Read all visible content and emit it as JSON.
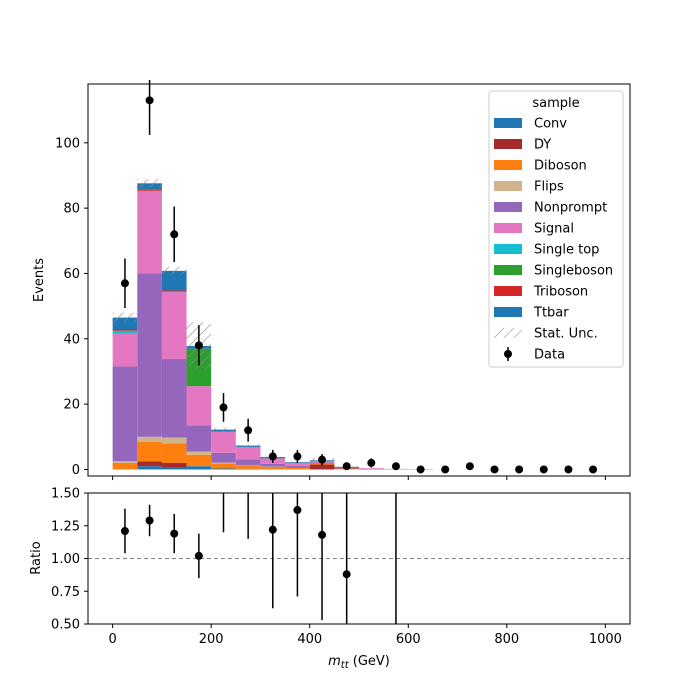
{
  "chart_data": [
    {
      "type": "bar",
      "stacked": true,
      "ylabel": "Events",
      "xlim": [
        -50,
        1050
      ],
      "ylim": [
        -2,
        118
      ],
      "yticks": [
        0,
        20,
        40,
        60,
        80,
        100
      ],
      "ytick_labels": [
        "0",
        "20",
        "40",
        "60",
        "80",
        "100"
      ],
      "bin_edges": [
        0,
        50,
        100,
        150,
        200,
        250,
        300,
        350,
        400,
        450,
        500,
        550,
        600,
        650,
        700,
        750,
        800,
        850,
        900,
        950,
        1000
      ],
      "legend_title": "sample",
      "legend_position": "top-right",
      "series": [
        {
          "name": "Conv",
          "color": "#1f77b4",
          "values": [
            0,
            1.0,
            0.5,
            1.0,
            0.3,
            0.2,
            0,
            0,
            0,
            0,
            0,
            0,
            0,
            0,
            0,
            0,
            0,
            0,
            0,
            0
          ]
        },
        {
          "name": "DY",
          "color": "#a52a2a",
          "values": [
            0,
            1.5,
            1.5,
            0,
            0,
            0,
            0,
            0,
            1.5,
            0,
            0,
            0,
            0,
            0,
            0,
            0,
            0,
            0,
            0,
            0
          ]
        },
        {
          "name": "Diboson",
          "color": "#ff7f0e",
          "values": [
            2.0,
            6.0,
            6.0,
            3.5,
            1.5,
            1.0,
            0.8,
            0.5,
            0.3,
            0.3,
            0,
            0,
            0,
            0,
            0,
            0,
            0,
            0,
            0,
            0
          ]
        },
        {
          "name": "Flips",
          "color": "#d2b48c",
          "values": [
            0.5,
            1.5,
            1.8,
            1.0,
            0.3,
            0.1,
            0.1,
            0,
            0,
            0,
            0,
            0,
            0,
            0,
            0,
            0,
            0,
            0,
            0,
            0
          ]
        },
        {
          "name": "Nonprompt",
          "color": "#9467bd",
          "values": [
            29.0,
            50.0,
            24.0,
            8.0,
            3.0,
            1.8,
            0.8,
            0.6,
            0.3,
            0.3,
            0.2,
            0.1,
            0.1,
            0,
            0,
            0,
            0,
            0,
            0,
            0
          ]
        },
        {
          "name": "Signal",
          "color": "#e377c2",
          "values": [
            10.0,
            25.0,
            20.5,
            12.0,
            6.5,
            3.8,
            1.7,
            0.8,
            0.4,
            0,
            0.2,
            0.1,
            0,
            0,
            0,
            0,
            0,
            0,
            0,
            0
          ]
        },
        {
          "name": "Single top",
          "color": "#17becf",
          "values": [
            1.0,
            0.3,
            0.2,
            0,
            0,
            0,
            0,
            0,
            0,
            0,
            0,
            0,
            0,
            0,
            0,
            0,
            0,
            0,
            0,
            0
          ]
        },
        {
          "name": "Singleboson",
          "color": "#2ca02c",
          "values": [
            0,
            0,
            0,
            11.5,
            0,
            0,
            0,
            0,
            0,
            0,
            0,
            0,
            0,
            0,
            0,
            0,
            0,
            0,
            0,
            0
          ]
        },
        {
          "name": "Triboson",
          "color": "#d62728",
          "values": [
            0.5,
            0.3,
            0.3,
            0,
            0,
            0,
            0,
            0,
            0,
            0,
            0,
            0,
            0,
            0,
            0,
            0,
            0,
            0,
            0,
            0
          ]
        },
        {
          "name": "Ttbar",
          "color": "#1f77b4",
          "values": [
            3.5,
            2.0,
            6.0,
            0.8,
            0.6,
            0.4,
            0.4,
            0.3,
            0.3,
            0.2,
            0,
            0,
            0,
            0,
            0,
            0,
            0,
            0,
            0,
            0
          ]
        }
      ],
      "stat_unc": {
        "name": "Stat. Unc.",
        "values": [
          3.0,
          2.5,
          2.5,
          14.5,
          1.0,
          0.6,
          0.5,
          0.5,
          1.5,
          0.2,
          0.1,
          0.1,
          0.1,
          0,
          0,
          0,
          0,
          0,
          0,
          0
        ]
      },
      "data": {
        "name": "Data",
        "color": "#000000",
        "x": [
          25,
          75,
          125,
          175,
          225,
          275,
          325,
          375,
          425,
          475,
          525,
          575,
          625,
          675,
          725,
          775,
          825,
          875,
          925,
          975
        ],
        "y": [
          57,
          113,
          72,
          38,
          19,
          12,
          4,
          4,
          3,
          1,
          2,
          1,
          0,
          0,
          1,
          0,
          0,
          0,
          0,
          0
        ],
        "yerr": [
          7.6,
          10.6,
          8.5,
          6.2,
          4.4,
          3.5,
          2.0,
          2.0,
          1.7,
          1.0,
          1.4,
          1.0,
          0,
          0,
          1.0,
          0,
          0,
          0,
          0,
          0
        ]
      }
    },
    {
      "type": "scatter",
      "xlabel": "m_tt (GeV)",
      "ylabel": "Ratio",
      "xlim": [
        -50,
        1050
      ],
      "ylim": [
        0.5,
        1.5
      ],
      "xticks": [
        0,
        200,
        400,
        600,
        800,
        1000
      ],
      "xtick_labels": [
        "0",
        "200",
        "400",
        "600",
        "800",
        "1000"
      ],
      "yticks": [
        0.5,
        0.75,
        1.0,
        1.25,
        1.5
      ],
      "ytick_labels": [
        "0.50",
        "0.75",
        "1.00",
        "1.25",
        "1.50"
      ],
      "reference_line": 1.0,
      "x": [
        25,
        75,
        125,
        175,
        225,
        275,
        325,
        375,
        425,
        475,
        525,
        575
      ],
      "y": [
        1.21,
        1.29,
        1.19,
        1.02,
        1.55,
        1.6,
        1.22,
        1.37,
        1.18,
        0.88,
        null,
        null
      ],
      "yerr": [
        0.17,
        0.12,
        0.15,
        0.17,
        0.35,
        0.45,
        0.6,
        0.66,
        0.65,
        0.88,
        null,
        0.9
      ],
      "err_lines_only": [
        false,
        false,
        false,
        false,
        false,
        false,
        false,
        false,
        false,
        false,
        false,
        true
      ]
    }
  ]
}
